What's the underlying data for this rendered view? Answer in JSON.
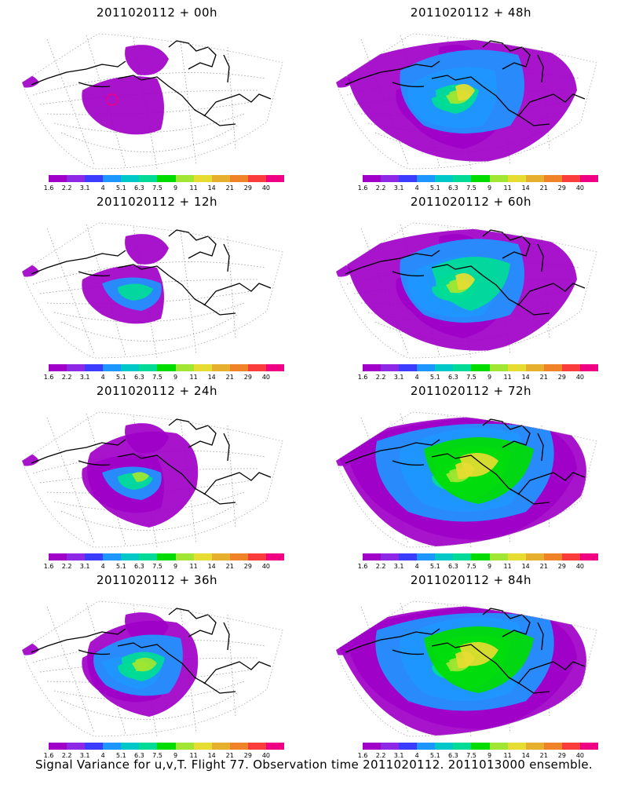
{
  "panels": [
    {
      "title": "2011020112 + 00h",
      "stage": 0
    },
    {
      "title": "2011020112 + 48h",
      "stage": 4
    },
    {
      "title": "2011020112 + 12h",
      "stage": 1
    },
    {
      "title": "2011020112 + 60h",
      "stage": 5
    },
    {
      "title": "2011020112 + 24h",
      "stage": 2
    },
    {
      "title": "2011020112 + 72h",
      "stage": 6
    },
    {
      "title": "2011020112 + 36h",
      "stage": 3
    },
    {
      "title": "2011020112 + 84h",
      "stage": 7
    }
  ],
  "colorbar": {
    "labels": [
      "1.6",
      "2.2",
      "3.1",
      "4",
      "5.1",
      "6.3",
      "7.5",
      "9",
      "11",
      "14",
      "21",
      "29",
      "40"
    ],
    "colors": [
      "#a000c8",
      "#8c28e6",
      "#3c3cff",
      "#1e96ff",
      "#00c8c8",
      "#00dc96",
      "#00dc00",
      "#a0e632",
      "#e6dc32",
      "#e6af2d",
      "#f08228",
      "#fa3c3c",
      "#f00082"
    ]
  },
  "footer": "Signal Variance for u,v,T. Flight 77. Observation time 2011020112. 2011013000 ensemble."
}
